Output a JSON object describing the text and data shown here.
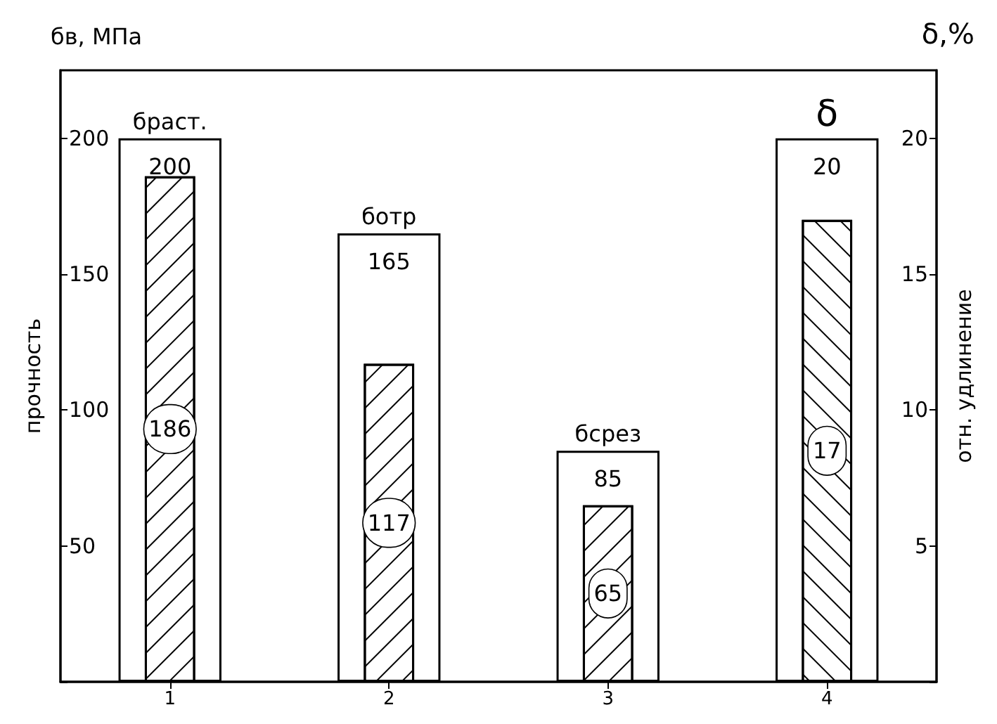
{
  "chart_data": {
    "type": "bar",
    "categories": [
      "1",
      "2",
      "3",
      "4"
    ],
    "series": [
      {
        "color": "#ffffff",
        "values": [
          200,
          165,
          85,
          null
        ]
      },
      {
        "color": "#000000",
        "values": [
          186,
          117,
          65,
          null
        ]
      },
      {
        "color": "#ffffff",
        "axis": "y2",
        "values": [
          null,
          null,
          null,
          20
        ]
      },
      {
        "color": "#000000",
        "axis": "y2",
        "values": [
          null,
          null,
          null,
          17
        ]
      }
    ],
    "ylabel": "прочность",
    "y2label": "отн. удлинение",
    "ylim": [
      0,
      225
    ],
    "yticks": [
      {
        "value": 0,
        "label": null
      },
      50,
      100,
      150,
      200
    ],
    "y2lim": [
      0,
      22.5
    ],
    "y2ticks": [
      {
        "value": 0,
        "label": null
      },
      5,
      10,
      15,
      20
    ],
    "data_labels": true,
    "grid": false,
    "annotations": [
      "бв, МПа",
      "δ,%",
      {
        "text": "браст.",
        "x": "1",
        "y": 200
      },
      {
        "text": "ботр",
        "x": "2",
        "y": 165
      },
      {
        "text": "бсрез",
        "x": "3",
        "y": 85
      },
      "δ"
    ]
  }
}
